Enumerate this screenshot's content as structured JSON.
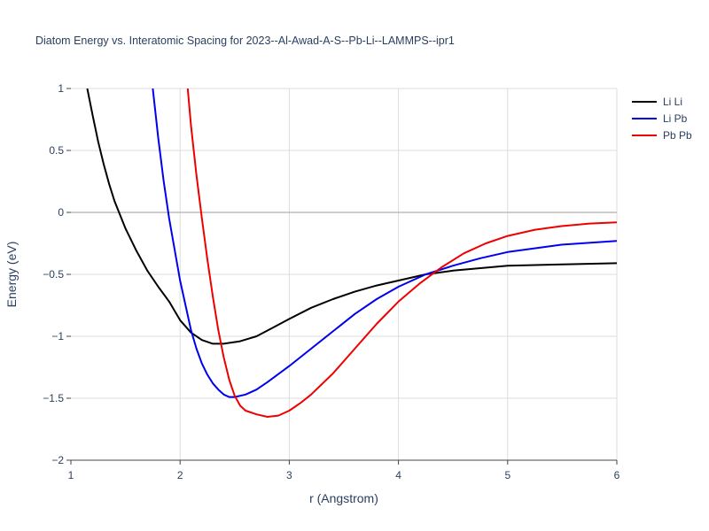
{
  "chart_data": {
    "type": "line",
    "title": "Diatom Energy vs. Interatomic Spacing for 2023--Al-Awad-A-S--Pb-Li--LAMMPS--ipr1",
    "xlabel": "r (Angstrom)",
    "ylabel": "Energy (eV)",
    "xlim": [
      1,
      6
    ],
    "ylim": [
      -2,
      1
    ],
    "xticks": [
      1,
      2,
      3,
      4,
      5,
      6
    ],
    "xtick_labels": [
      "1",
      "2",
      "3",
      "4",
      "5",
      "6"
    ],
    "yticks": [
      1,
      0.5,
      0,
      -0.5,
      -1,
      -1.5,
      -2
    ],
    "ytick_labels": [
      "1",
      "0.5",
      "0",
      "−0.5",
      "−1",
      "−1.5",
      "−2"
    ],
    "grid": true,
    "legend_position": "top-right",
    "series": [
      {
        "name": "Li Li",
        "color": "#000000",
        "x": [
          1.15,
          1.2,
          1.25,
          1.3,
          1.35,
          1.4,
          1.5,
          1.6,
          1.7,
          1.8,
          1.9,
          2.0,
          2.1,
          2.2,
          2.3,
          2.4,
          2.55,
          2.7,
          2.85,
          3.0,
          3.2,
          3.4,
          3.6,
          3.8,
          4.0,
          4.25,
          4.5,
          4.75,
          5.0,
          5.5,
          6.0
        ],
        "y": [
          1.0,
          0.78,
          0.57,
          0.39,
          0.23,
          0.09,
          -0.13,
          -0.31,
          -0.47,
          -0.6,
          -0.72,
          -0.87,
          -0.97,
          -1.03,
          -1.06,
          -1.06,
          -1.04,
          -1.0,
          -0.93,
          -0.86,
          -0.77,
          -0.7,
          -0.64,
          -0.59,
          -0.55,
          -0.5,
          -0.47,
          -0.45,
          -0.43,
          -0.42,
          -0.41
        ]
      },
      {
        "name": "Li Pb",
        "color": "#0000ee",
        "x": [
          1.75,
          1.8,
          1.85,
          1.9,
          1.95,
          2.0,
          2.05,
          2.1,
          2.15,
          2.2,
          2.25,
          2.3,
          2.35,
          2.4,
          2.45,
          2.5,
          2.6,
          2.7,
          2.8,
          3.0,
          3.2,
          3.4,
          3.6,
          3.8,
          4.0,
          4.25,
          4.5,
          4.75,
          5.0,
          5.5,
          6.0
        ],
        "y": [
          1.0,
          0.6,
          0.25,
          -0.05,
          -0.3,
          -0.55,
          -0.75,
          -0.95,
          -1.1,
          -1.22,
          -1.31,
          -1.38,
          -1.43,
          -1.47,
          -1.49,
          -1.49,
          -1.47,
          -1.43,
          -1.37,
          -1.24,
          -1.1,
          -0.96,
          -0.82,
          -0.7,
          -0.6,
          -0.5,
          -0.43,
          -0.37,
          -0.32,
          -0.26,
          -0.23
        ]
      },
      {
        "name": "Pb Pb",
        "color": "#ee0000",
        "x": [
          2.07,
          2.1,
          2.15,
          2.2,
          2.25,
          2.3,
          2.35,
          2.4,
          2.45,
          2.5,
          2.55,
          2.6,
          2.7,
          2.8,
          2.9,
          3.0,
          3.1,
          3.2,
          3.4,
          3.6,
          3.8,
          4.0,
          4.2,
          4.4,
          4.6,
          4.8,
          5.0,
          5.25,
          5.5,
          5.75,
          6.0
        ],
        "y": [
          1.0,
          0.7,
          0.3,
          -0.05,
          -0.38,
          -0.68,
          -0.95,
          -1.17,
          -1.35,
          -1.48,
          -1.56,
          -1.6,
          -1.63,
          -1.65,
          -1.64,
          -1.6,
          -1.54,
          -1.47,
          -1.3,
          -1.1,
          -0.9,
          -0.72,
          -0.57,
          -0.44,
          -0.33,
          -0.25,
          -0.19,
          -0.14,
          -0.11,
          -0.09,
          -0.08
        ]
      }
    ]
  }
}
